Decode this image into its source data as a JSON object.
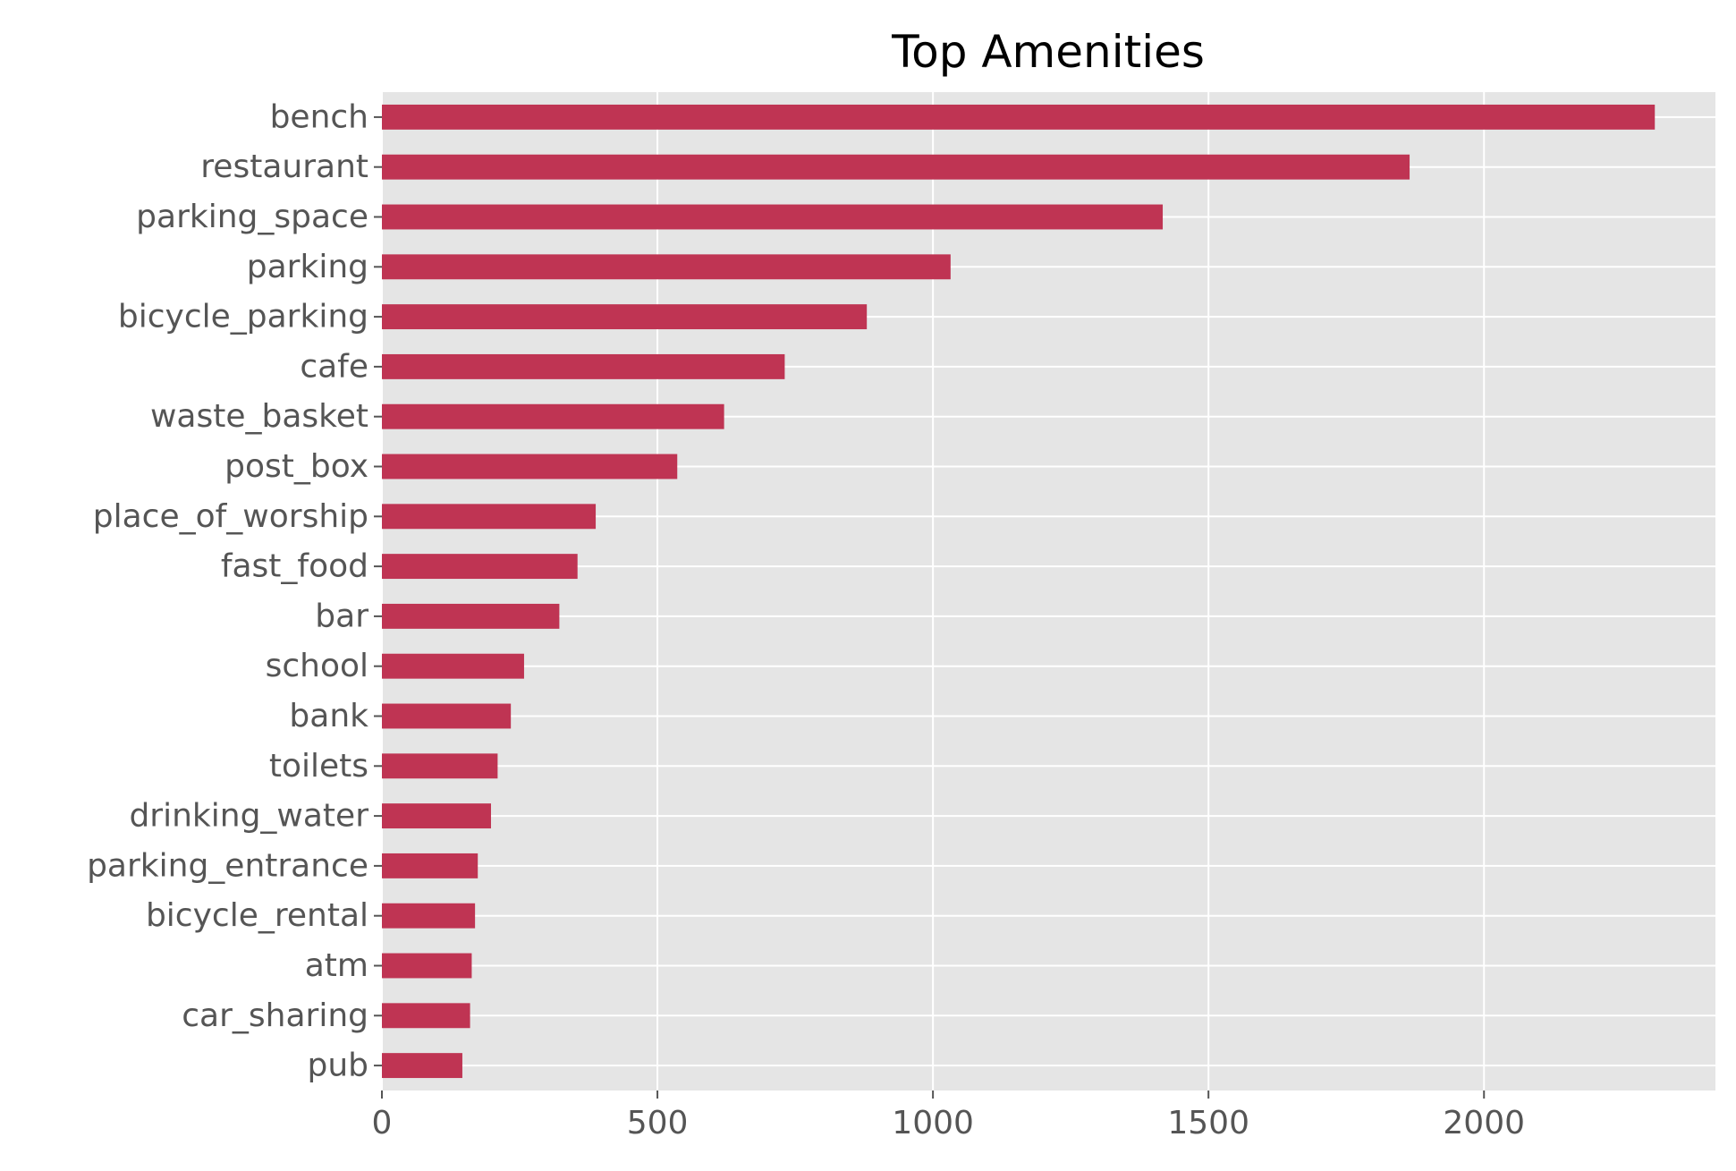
{
  "chart_data": {
    "type": "bar",
    "orientation": "horizontal",
    "title": "Top Amenities",
    "xlabel": "",
    "ylabel": "",
    "categories": [
      "bench",
      "restaurant",
      "parking_space",
      "parking",
      "bicycle_parking",
      "cafe",
      "waste_basket",
      "post_box",
      "place_of_worship",
      "fast_food",
      "bar",
      "school",
      "bank",
      "toilets",
      "drinking_water",
      "parking_entrance",
      "bicycle_rental",
      "atm",
      "car_sharing",
      "pub"
    ],
    "values": [
      2310,
      1865,
      1417,
      1032,
      880,
      731,
      621,
      536,
      388,
      355,
      322,
      258,
      234,
      210,
      198,
      174,
      169,
      163,
      160,
      146
    ],
    "xlim": [
      0,
      2420
    ],
    "xticks": [
      0,
      500,
      1000,
      1500,
      2000
    ],
    "grid": true,
    "colors": {
      "bar": "#bf3453",
      "panel": "#e5e5e5",
      "grid": "#ffffff",
      "tick_text": "#555555",
      "title_text": "#000000"
    }
  }
}
